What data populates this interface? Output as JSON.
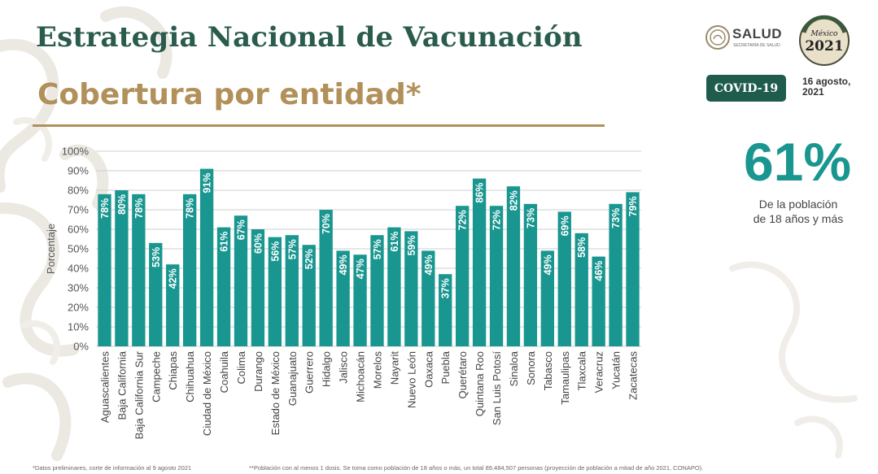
{
  "header": {
    "title": "Estrategia Nacional de Vacunación",
    "subtitle": "Cobertura por entidad*",
    "salud_logo_text": "SALUD",
    "salud_logo_subtext": "SECRETARÍA DE SALUD",
    "emblem_text": "México 2021",
    "badge": "COVID-19",
    "date": "16 agosto, 2021"
  },
  "stat": {
    "value": "61%",
    "caption_line1": "De la población",
    "caption_line2": "de 18 años y más"
  },
  "footnotes": {
    "left": "*Datos preliminares, corte de información al 9 agosto  2021",
    "right": "**Población con al menos 1 dosis. Se toma como población de 18 años o más, un total 89,484,507 personas (proyección de población a mitad de año 2021, CONAPO)."
  },
  "colors": {
    "bar": "#1a9690",
    "title": "#2a5c4d",
    "subtitle": "#b1905a",
    "stat": "#1a9690",
    "badge": "#1f5c4d"
  },
  "chart_data": {
    "type": "bar",
    "title": "",
    "xlabel": "",
    "ylabel": "Porcentaje",
    "ylim": [
      0,
      100
    ],
    "yticks": [
      0,
      10,
      20,
      30,
      40,
      50,
      60,
      70,
      80,
      90,
      100
    ],
    "ytick_labels": [
      "0%",
      "10%",
      "20%",
      "30%",
      "40%",
      "50%",
      "60%",
      "70%",
      "80%",
      "90%",
      "100%"
    ],
    "grid": true,
    "legend": "none",
    "categories": [
      "Aguascalientes",
      "Baja California",
      "Baja California Sur",
      "Campeche",
      "Chiapas",
      "Chihuahua",
      "Ciudad de México",
      "Coahuila",
      "Colima",
      "Durango",
      "Estado de México",
      "Guanajuato",
      "Guerrero",
      "Hidalgo",
      "Jalisco",
      "Michoacán",
      "Morelos",
      "Nayarit",
      "Nuevo León",
      "Oaxaca",
      "Puebla",
      "Querétaro",
      "Quintana Roo",
      "San Luis Potosí",
      "Sinaloa",
      "Sonora",
      "Tabasco",
      "Tamaulipas",
      "Tlaxcala",
      "Veracruz",
      "Yucatán",
      "Zacatecas"
    ],
    "values": [
      78,
      80,
      78,
      53,
      42,
      78,
      91,
      61,
      67,
      60,
      56,
      57,
      52,
      70,
      49,
      47,
      57,
      61,
      59,
      49,
      37,
      72,
      86,
      72,
      82,
      73,
      49,
      69,
      58,
      46,
      73,
      79
    ],
    "data_labels": [
      "78%",
      "80%",
      "78%",
      "53%",
      "42%",
      "78%",
      "91%",
      "61%",
      "67%",
      "60%",
      "56%",
      "57%",
      "52%",
      "70%",
      "49%",
      "47%",
      "57%",
      "61%",
      "59%",
      "49%",
      "37%",
      "72%",
      "86%",
      "72%",
      "82%",
      "73%",
      "49%",
      "69%",
      "58%",
      "46%",
      "73%",
      "79%"
    ]
  }
}
